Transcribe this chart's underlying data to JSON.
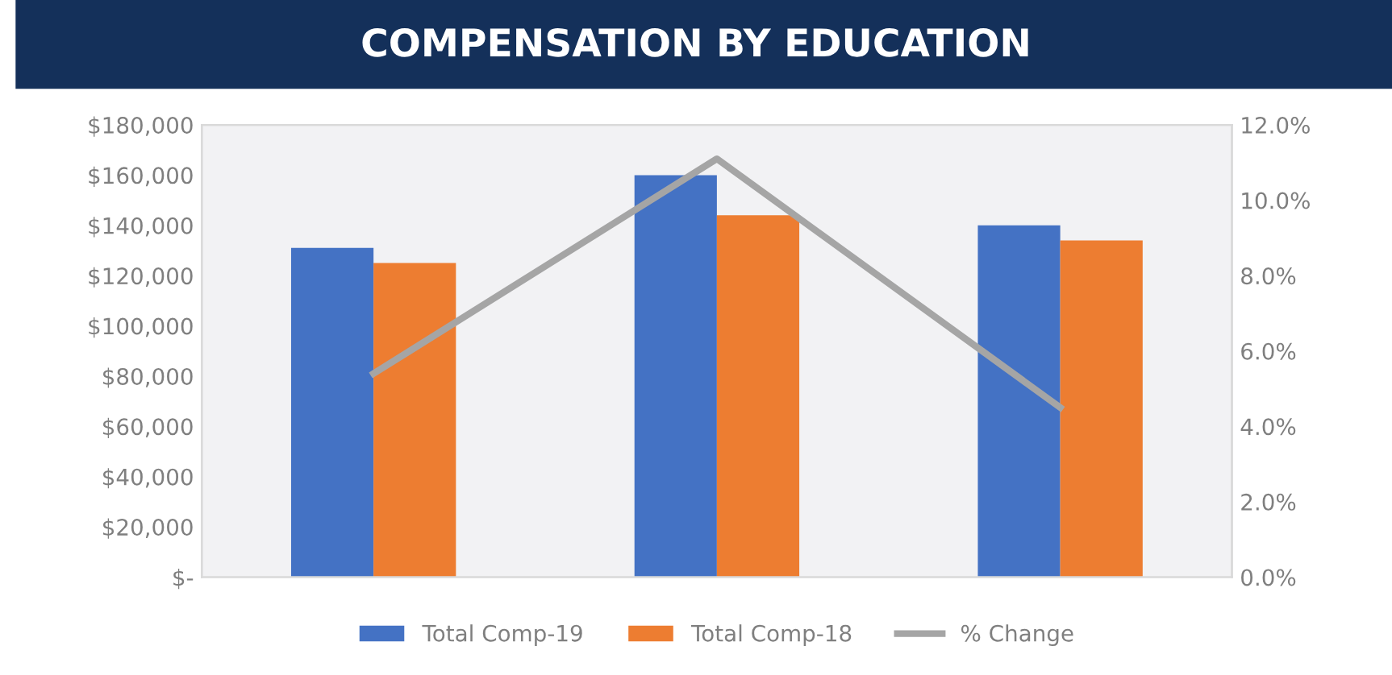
{
  "chart_data": {
    "type": "bar",
    "title": "COMPENSATION BY EDUCATION",
    "categories": [
      null,
      null,
      null
    ],
    "series": [
      {
        "name": "Total Comp-19",
        "color": "#4472c4",
        "values": [
          131000,
          160000,
          140000
        ]
      },
      {
        "name": "Total Comp-18",
        "color": "#ed7d31",
        "values": [
          125000,
          144000,
          134000
        ]
      },
      {
        "name": "% Change",
        "type": "line",
        "axis": "y2",
        "color": "#a5a5a5",
        "values": [
          5.4,
          11.1,
          4.5
        ]
      }
    ],
    "ylim": [
      0,
      180000
    ],
    "yticks": [
      {
        "value": 0,
        "label": "$-"
      },
      {
        "value": 20000,
        "label": "$20,000"
      },
      {
        "value": 40000,
        "label": "$40,000"
      },
      {
        "value": 60000,
        "label": "$60,000"
      },
      {
        "value": 80000,
        "label": "$80,000"
      },
      {
        "value": 100000,
        "label": "$100,000"
      },
      {
        "value": 120000,
        "label": "$120,000"
      },
      {
        "value": 140000,
        "label": "$140,000"
      },
      {
        "value": 160000,
        "label": "$160,000"
      },
      {
        "value": 180000,
        "label": "$180,000"
      }
    ],
    "y2lim": [
      0,
      12
    ],
    "y2ticks": [
      {
        "value": 0,
        "label": "0.0%"
      },
      {
        "value": 2,
        "label": "2.0%"
      },
      {
        "value": 4,
        "label": "4.0%"
      },
      {
        "value": 6,
        "label": "6.0%"
      },
      {
        "value": 8,
        "label": "8.0%"
      },
      {
        "value": 10,
        "label": "10.0%"
      },
      {
        "value": 12,
        "label": "12.0%"
      }
    ],
    "grid": false,
    "legend": "bottom"
  }
}
